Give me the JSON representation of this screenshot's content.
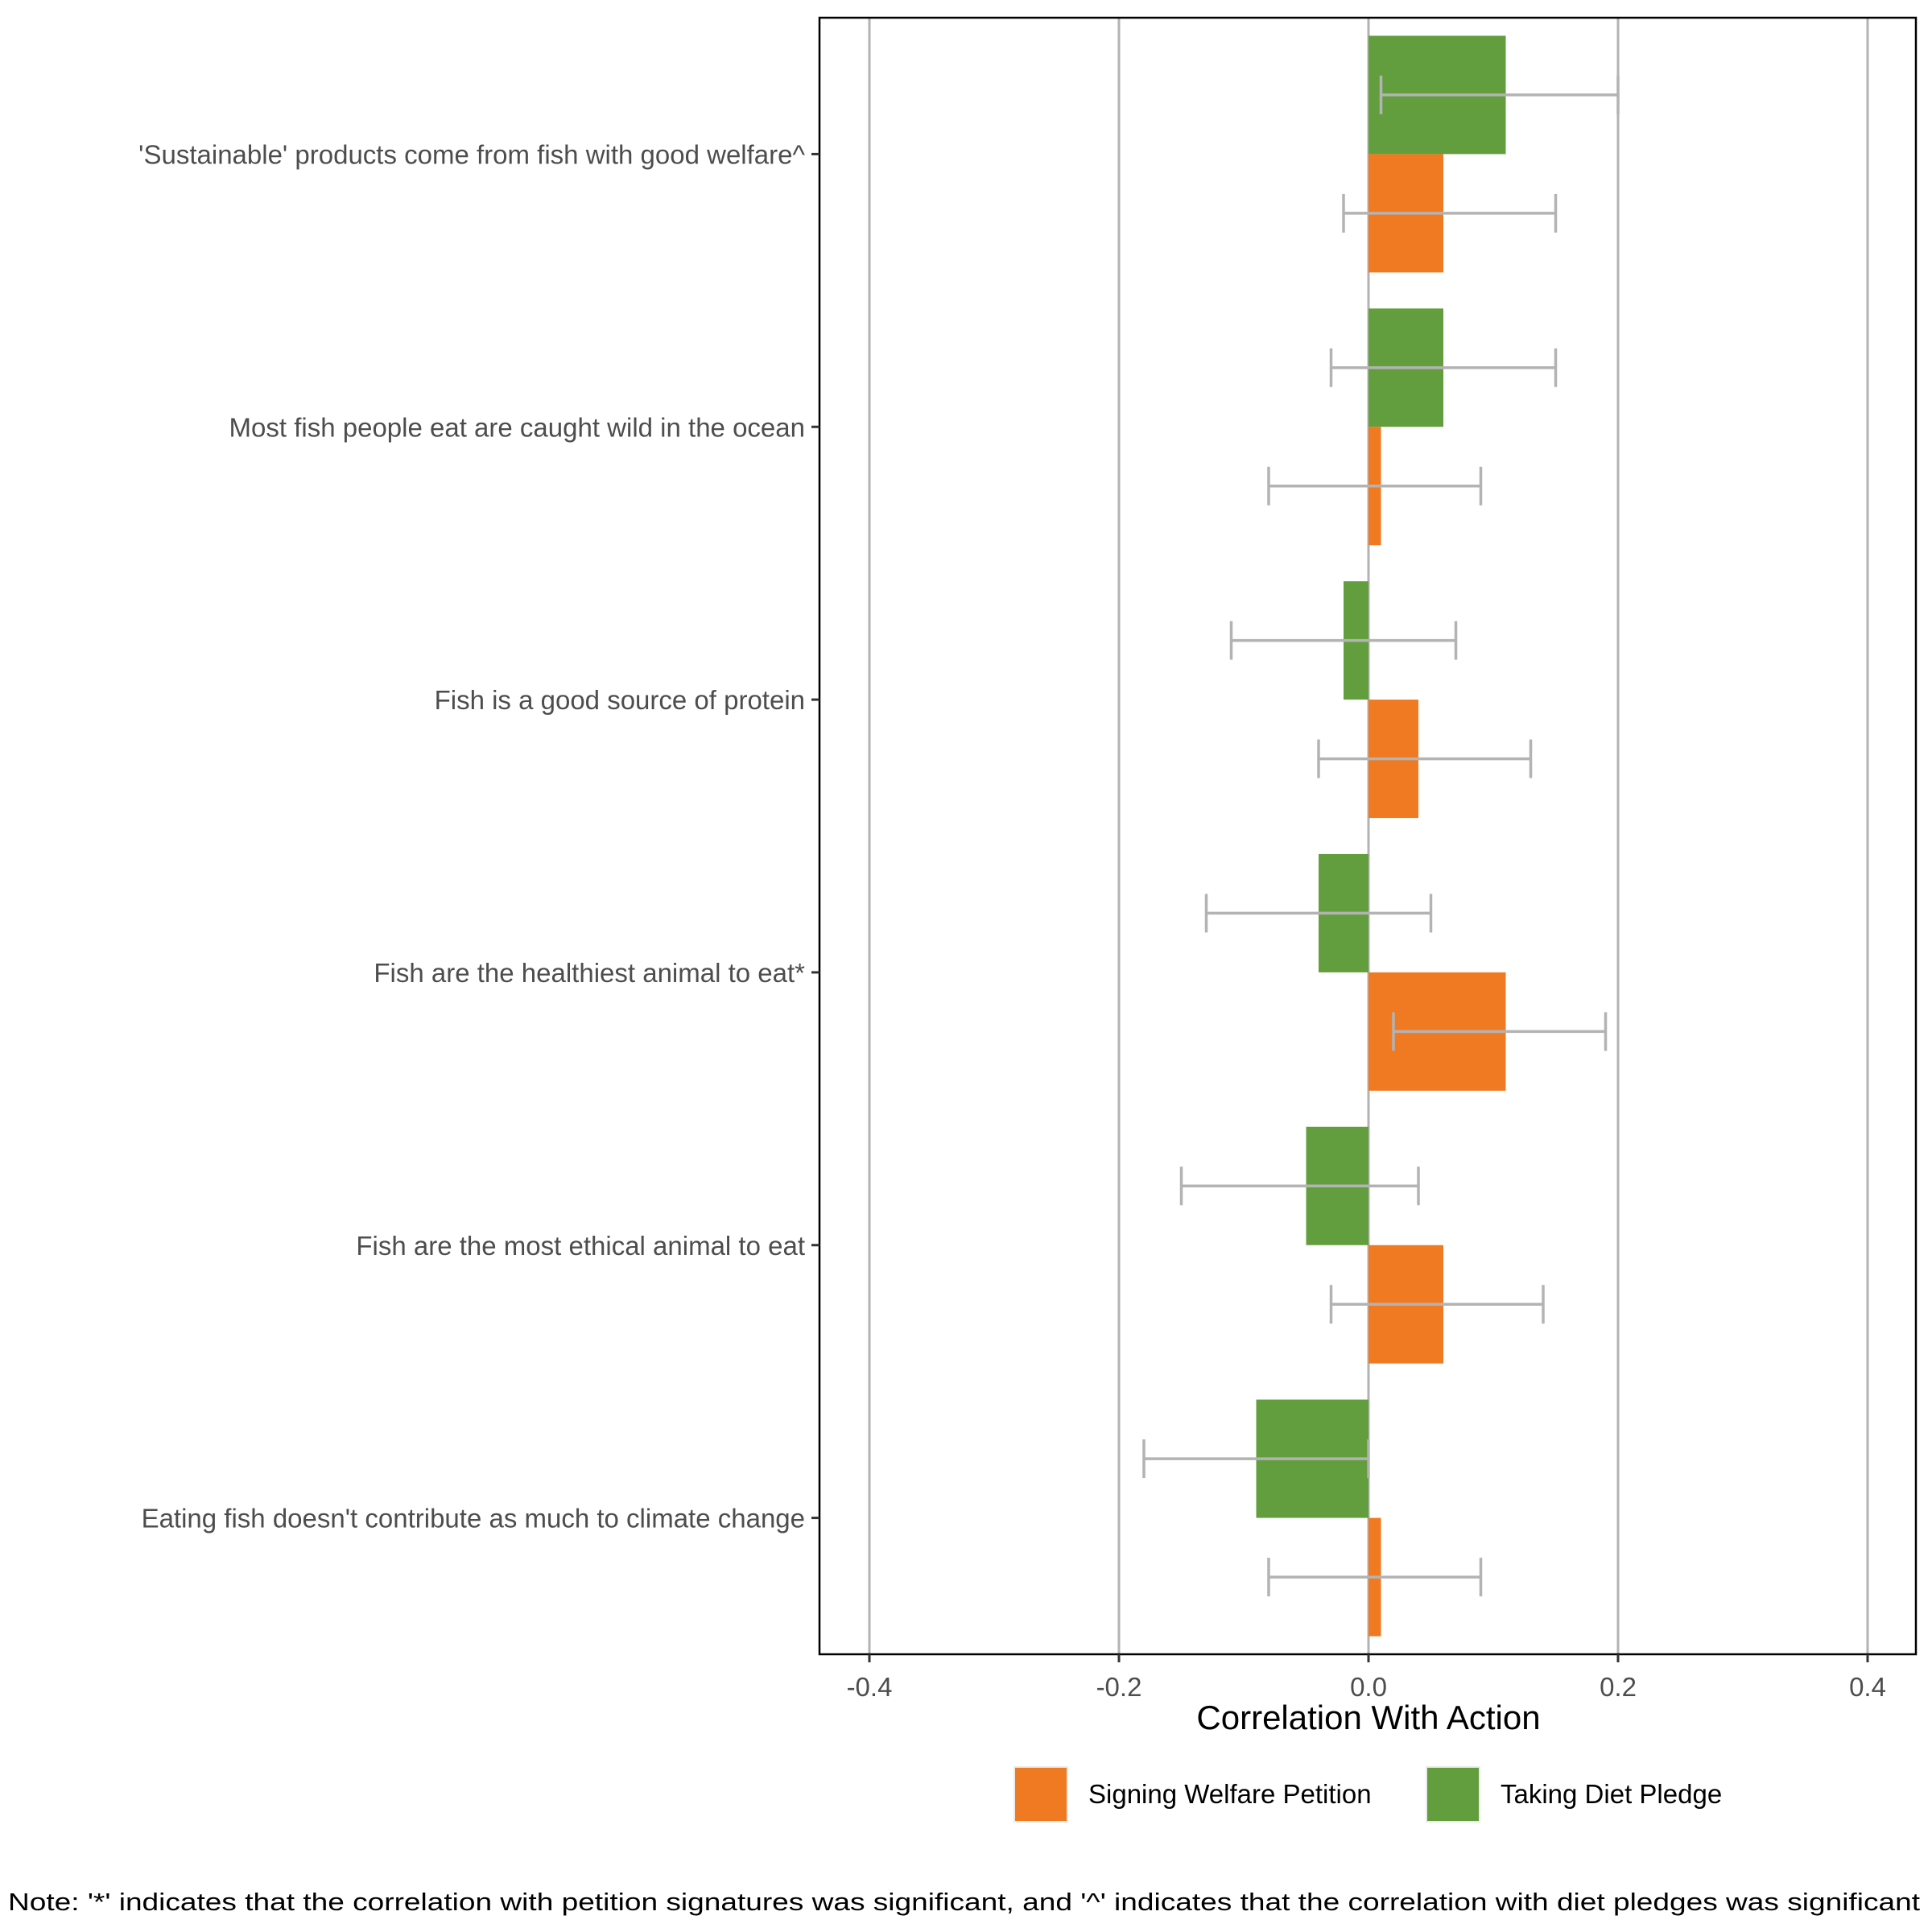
{
  "chart_data": {
    "type": "bar",
    "orientation": "horizontal",
    "title": "",
    "xlabel": "Correlation With Action",
    "ylabel": "",
    "xlim": [
      -0.42,
      0.42
    ],
    "xticks": [
      -0.4,
      -0.2,
      0.0,
      0.2,
      0.4
    ],
    "xtick_labels": [
      "-0.4",
      "-0.2",
      "0.0",
      "0.2",
      "0.4"
    ],
    "grid": "vertical major lines",
    "categories": [
      "'Sustainable' products come from fish with good welfare^",
      "Most fish people eat are caught wild in the ocean",
      "Fish is a good source of protein",
      "Fish are the healthiest animal to eat*",
      "Fish are the most ethical animal to eat",
      "Eating fish doesn't contribute as much to climate change"
    ],
    "series": [
      {
        "name": "Taking Diet Pledge",
        "color": "#639E3E",
        "values": [
          0.11,
          0.06,
          -0.02,
          -0.04,
          -0.05,
          -0.09
        ],
        "ci_low": [
          0.01,
          -0.03,
          -0.11,
          -0.13,
          -0.15,
          -0.18
        ],
        "ci_high": [
          0.2,
          0.15,
          0.07,
          0.05,
          0.04,
          0.0
        ]
      },
      {
        "name": "Signing Welfare Petition",
        "color": "#F07A21",
        "values": [
          0.06,
          0.01,
          0.04,
          0.11,
          0.06,
          0.01
        ],
        "ci_low": [
          -0.02,
          -0.08,
          -0.04,
          0.02,
          -0.03,
          -0.08
        ],
        "ci_high": [
          0.15,
          0.09,
          0.13,
          0.19,
          0.14,
          0.09
        ]
      }
    ],
    "errorbar_color": "#B3B3B3",
    "legend": {
      "position": "bottom",
      "entries": [
        {
          "label": "Signing Welfare Petition",
          "color": "#F07A21"
        },
        {
          "label": "Taking Diet Pledge",
          "color": "#639E3E"
        }
      ]
    },
    "note": "Note: '*' indicates that the correlation with petition signatures was significant, and '^' indicates that the correlation with diet pledges was significant"
  }
}
